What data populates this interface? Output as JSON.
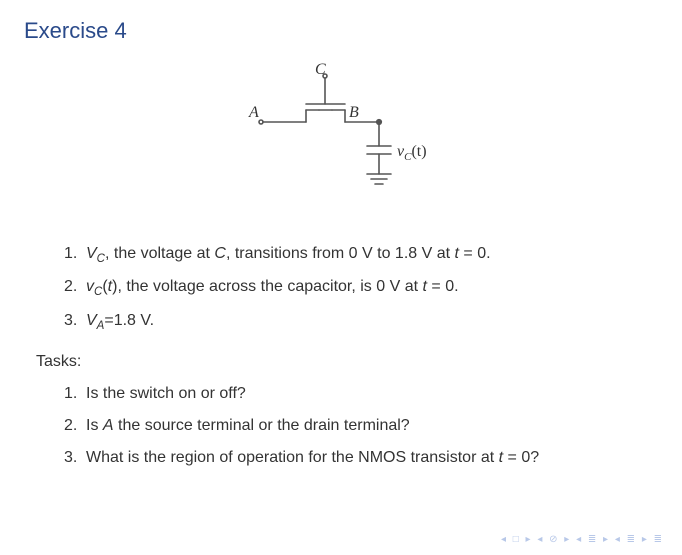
{
  "title": "Exercise 4",
  "circuit": {
    "labels": {
      "C": "C",
      "A": "A",
      "B": "B",
      "vC": "v",
      "vC_sub": "C",
      "vC_arg": "(t)"
    },
    "stroke": "#555555",
    "stroke_width": 1.6,
    "terminal_radius": 2.0
  },
  "givens": [
    {
      "n": "1.",
      "html": "<span class='italic'>V<span class='sub'>C</span></span>, the voltage at <span class='italic'>C</span>, transitions from 0 V to 1.8 V at <span class='italic'>t</span> = 0."
    },
    {
      "n": "2.",
      "html": "<span class='italic'>v<span class='sub'>C</span></span>(<span class='italic'>t</span>), the voltage across the capacitor, is 0 V at <span class='italic'>t</span> = 0."
    },
    {
      "n": "3.",
      "html": "<span class='italic'>V<span class='sub'>A</span></span>=1.8 V."
    }
  ],
  "tasks_label": "Tasks:",
  "tasks": [
    {
      "n": "1.",
      "html": "Is the switch on or off?"
    },
    {
      "n": "2.",
      "html": "Is <span class='italic'>A</span> the source terminal or the drain terminal?"
    },
    {
      "n": "3.",
      "html": "What is the region of operation for the NMOS transistor at <span class='italic'>t</span> = 0?"
    }
  ],
  "nav": {
    "glyphs": "◂ □ ▸  ◂ ⊘ ▸  ◂ ≣ ▸  ◂ ≣ ▸   ≣"
  }
}
